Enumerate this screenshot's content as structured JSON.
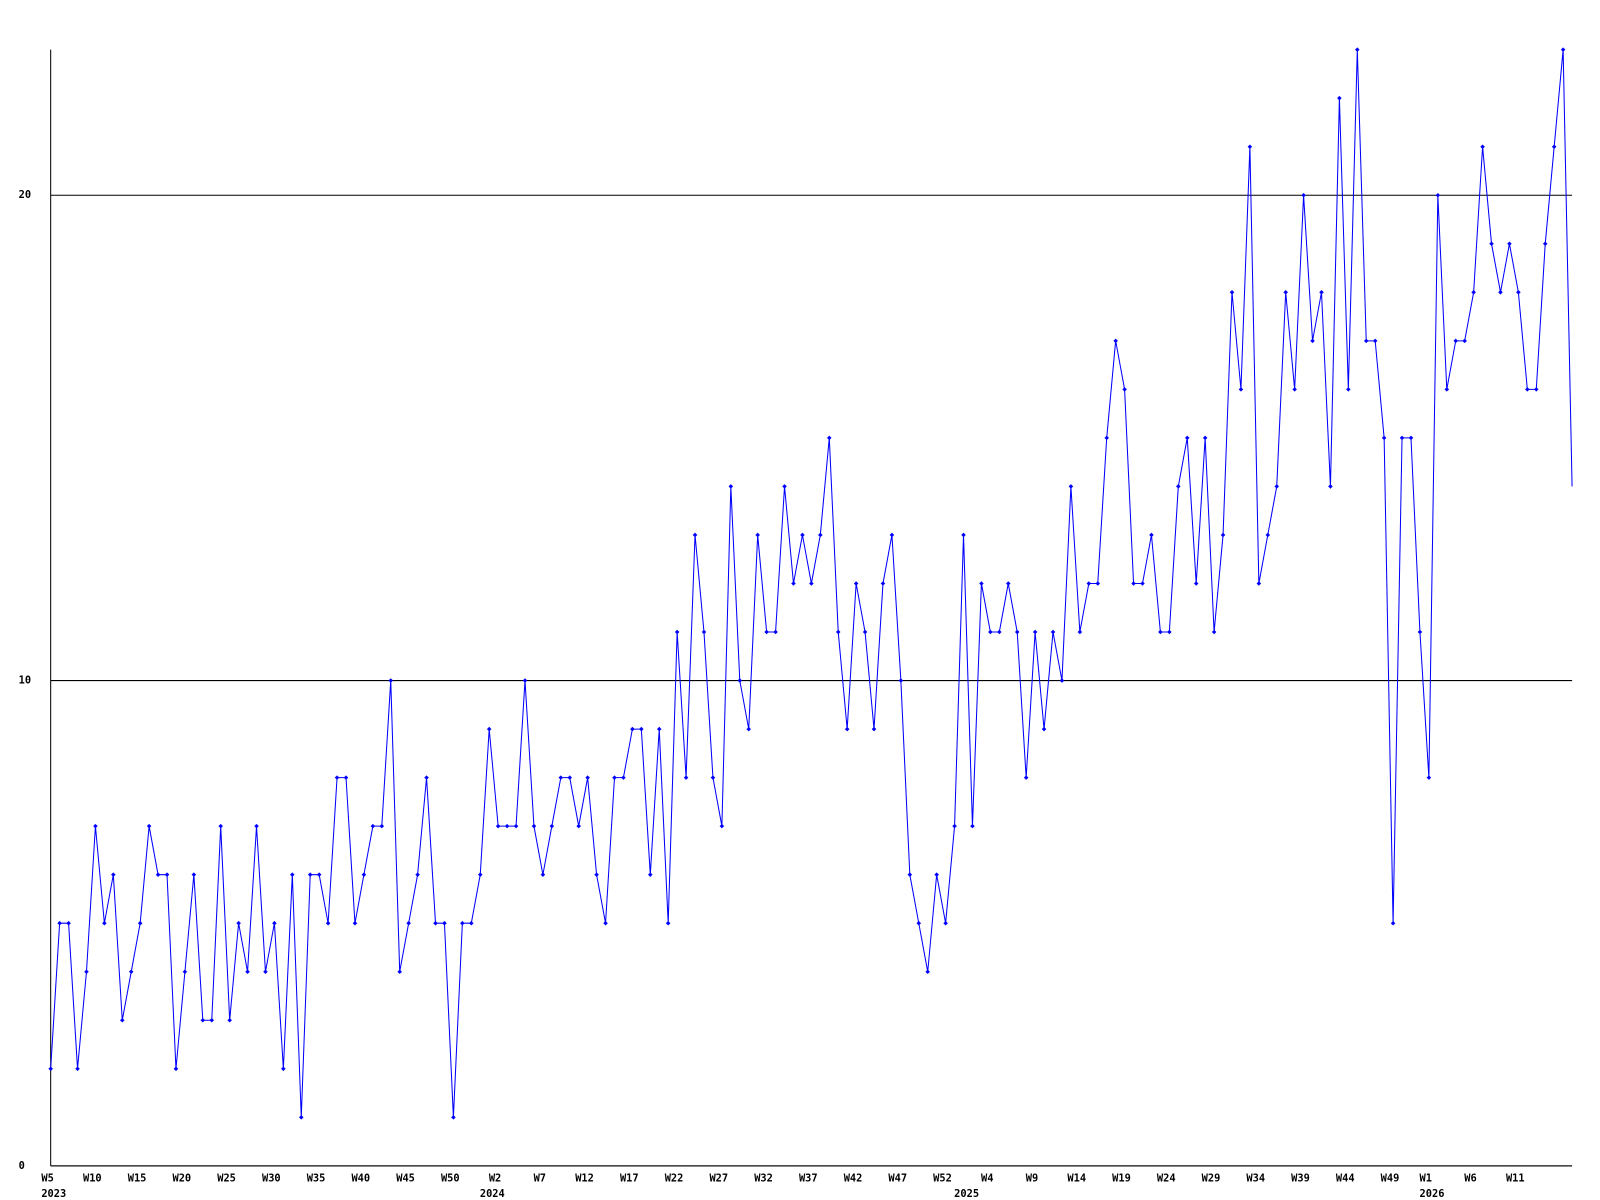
{
  "chart_data": {
    "type": "line",
    "color": "#0000ff",
    "grid": true,
    "ylim": [
      0,
      23
    ],
    "yticks": [
      0,
      10,
      20
    ],
    "categories": [
      "W5",
      null,
      null,
      null,
      null,
      "W10",
      null,
      null,
      null,
      null,
      "W15",
      null,
      null,
      null,
      null,
      "W20",
      null,
      null,
      null,
      null,
      "W25",
      null,
      null,
      null,
      null,
      "W30",
      null,
      null,
      null,
      null,
      "W35",
      null,
      null,
      null,
      null,
      "W40",
      null,
      null,
      null,
      null,
      "W45",
      null,
      null,
      null,
      null,
      "W50",
      null,
      null,
      null,
      null,
      "W2",
      null,
      null,
      null,
      null,
      "W7",
      null,
      null,
      null,
      null,
      "W12",
      null,
      null,
      null,
      null,
      "W17",
      null,
      null,
      null,
      null,
      "W22",
      null,
      null,
      null,
      null,
      "W27",
      null,
      null,
      null,
      null,
      "W32",
      null,
      null,
      null,
      null,
      "W37",
      null,
      null,
      null,
      null,
      "W42",
      null,
      null,
      null,
      null,
      "W47",
      null,
      null,
      null,
      null,
      "W52",
      null,
      null,
      null,
      null,
      "W4",
      null,
      null,
      null,
      null,
      "W9",
      null,
      null,
      null,
      null,
      "W14",
      null,
      null,
      null,
      null,
      "W19",
      null,
      null,
      null,
      null,
      "W24",
      null,
      null,
      null,
      null,
      "W29",
      null,
      null,
      null,
      null,
      "W34",
      null,
      null,
      null,
      null,
      "W39",
      null,
      null,
      null,
      null,
      "W44",
      null,
      null,
      null,
      null,
      "W49",
      null,
      null,
      null,
      "W1",
      null,
      null,
      null,
      null,
      "W6",
      null,
      null,
      null,
      null,
      "W11",
      null,
      null,
      null,
      null,
      null,
      null
    ],
    "years": [
      "2023",
      null,
      null,
      null,
      null,
      null,
      null,
      null,
      null,
      null,
      null,
      null,
      null,
      null,
      null,
      null,
      null,
      null,
      null,
      null,
      null,
      null,
      null,
      null,
      null,
      null,
      null,
      null,
      null,
      null,
      null,
      null,
      null,
      null,
      null,
      null,
      null,
      null,
      null,
      null,
      null,
      null,
      null,
      null,
      null,
      null,
      null,
      null,
      null,
      "2024",
      null,
      null,
      null,
      null,
      null,
      null,
      null,
      null,
      null,
      null,
      null,
      null,
      null,
      null,
      null,
      null,
      null,
      null,
      null,
      null,
      null,
      null,
      null,
      null,
      null,
      null,
      null,
      null,
      null,
      null,
      null,
      null,
      null,
      null,
      null,
      null,
      null,
      null,
      null,
      null,
      null,
      null,
      null,
      null,
      null,
      null,
      null,
      null,
      null,
      null,
      null,
      null,
      "2025",
      null,
      null,
      null,
      null,
      null,
      null,
      null,
      null,
      null,
      null,
      null,
      null,
      null,
      null,
      null,
      null,
      null,
      null,
      null,
      null,
      null,
      null,
      null,
      null,
      null,
      null,
      null,
      null,
      null,
      null,
      null,
      null,
      null,
      null,
      null,
      null,
      null,
      null,
      null,
      null,
      null,
      null,
      null,
      null,
      null,
      null,
      null,
      null,
      null,
      null,
      null,
      "2026",
      null,
      null,
      null,
      null,
      null,
      null,
      null,
      null,
      null,
      null,
      null,
      null,
      null,
      null,
      null,
      null
    ],
    "values": [
      2,
      5,
      5,
      2,
      4,
      7,
      5,
      6,
      3,
      4,
      5,
      7,
      6,
      6,
      2,
      4,
      6,
      3,
      3,
      7,
      3,
      5,
      4,
      7,
      4,
      5,
      2,
      6,
      1,
      6,
      6,
      5,
      8,
      8,
      5,
      6,
      7,
      7,
      10,
      4,
      5,
      6,
      8,
      5,
      5,
      1,
      5,
      5,
      6,
      9,
      7,
      7,
      7,
      10,
      7,
      6,
      7,
      8,
      8,
      7,
      8,
      6,
      5,
      8,
      8,
      9,
      9,
      6,
      9,
      5,
      11,
      8,
      13,
      11,
      8,
      7,
      14,
      10,
      9,
      13,
      11,
      11,
      14,
      12,
      13,
      12,
      13,
      15,
      11,
      9,
      12,
      11,
      9,
      12,
      13,
      10,
      6,
      5,
      4,
      6,
      5,
      7,
      13,
      7,
      12,
      11,
      11,
      12,
      11,
      8,
      11,
      9,
      11,
      10,
      14,
      11,
      12,
      12,
      15,
      17,
      16,
      12,
      12,
      13,
      11,
      11,
      14,
      15,
      12,
      15,
      11,
      13,
      18,
      16,
      21,
      12,
      13,
      14,
      18,
      16,
      20,
      17,
      18,
      14,
      22,
      16,
      23,
      17,
      17,
      15,
      5,
      15,
      15,
      11,
      8,
      20,
      16,
      17,
      17,
      18,
      21,
      19,
      18,
      19,
      18,
      16,
      16,
      19,
      21,
      23,
      14
    ]
  }
}
